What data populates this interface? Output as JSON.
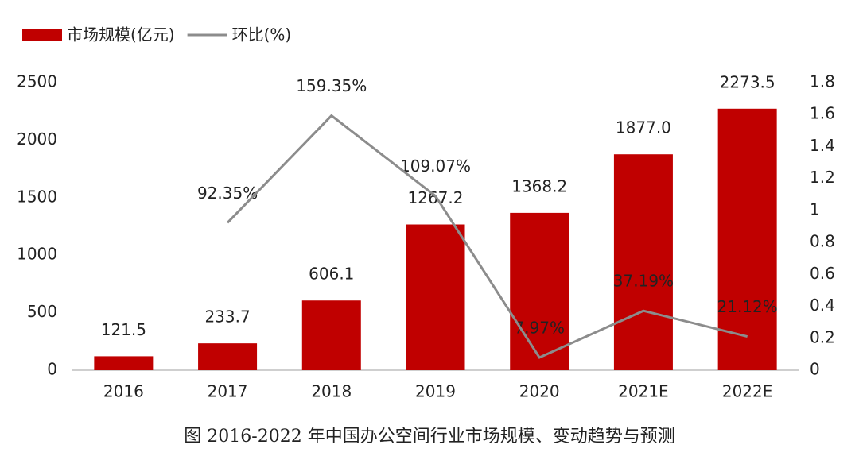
{
  "chart_data": {
    "type": "bar-line",
    "caption": "图 2016-2022 年中国办公空间行业市场规模、变动趋势与预测",
    "categories": [
      "2016",
      "2017",
      "2018",
      "2019",
      "2020",
      "2021E",
      "2022E"
    ],
    "series": [
      {
        "name": "市场规模(亿元)",
        "type": "bar",
        "color": "#c00000",
        "values": [
          121.5,
          233.7,
          606.1,
          1267.2,
          1368.2,
          1877.0,
          2273.5
        ],
        "value_labels": [
          "121.5",
          "233.7",
          "606.1",
          "1267.2",
          "1368.2",
          "1877.0",
          "2273.5"
        ]
      },
      {
        "name": "环比(%)",
        "type": "line",
        "axis": "y2",
        "color": "#8c8c8c",
        "values": [
          null,
          0.9235,
          1.5935,
          1.0907,
          0.0797,
          0.3719,
          0.2112
        ],
        "value_labels": [
          null,
          "92.35%",
          "159.35%",
          "109.07%",
          "7.97%",
          "37.19%",
          "21.12%"
        ]
      }
    ],
    "ylim": [
      0,
      2500
    ],
    "yticks": [
      0,
      500,
      1000,
      1500,
      2000,
      2500
    ],
    "y2lim": [
      0,
      1.8
    ],
    "y2ticks": [
      0,
      0.2,
      0.4,
      0.6,
      0.8,
      1,
      1.2,
      1.4,
      1.6,
      1.8
    ],
    "grid": false,
    "legend": "top-left"
  }
}
